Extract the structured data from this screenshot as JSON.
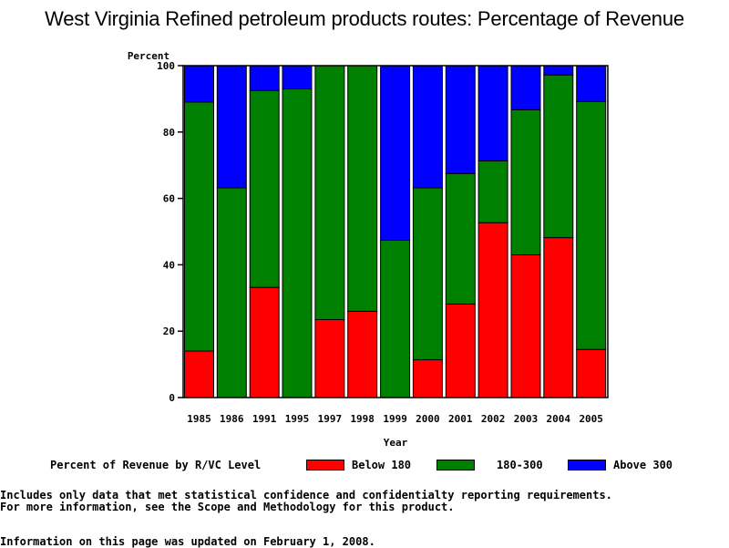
{
  "chart_data": {
    "type": "bar",
    "stacked": true,
    "title": "West Virginia Refined petroleum products routes: Percentage of Revenue",
    "xlabel": "Year",
    "ylabel": "Percent",
    "ylim": [
      0,
      100
    ],
    "yticks": [
      "0",
      "20",
      "40",
      "60",
      "80",
      "100"
    ],
    "categories": [
      "1985",
      "1986",
      "1991",
      "1995",
      "1997",
      "1998",
      "1999",
      "2000",
      "2001",
      "2002",
      "2003",
      "2004",
      "2005"
    ],
    "series": [
      {
        "name": "Below 180",
        "color": "#ff0000",
        "values": [
          14.0,
          0,
          33.2,
          0,
          23.5,
          26.0,
          0,
          11.4,
          28.2,
          52.7,
          43.0,
          48.2,
          14.5
        ]
      },
      {
        "name": "180-300",
        "color": "#008000",
        "values": [
          75.0,
          63.2,
          59.3,
          93.0,
          76.5,
          74.0,
          47.4,
          51.8,
          39.3,
          18.6,
          43.7,
          49.0,
          74.7
        ]
      },
      {
        "name": "Above 300",
        "color": "#0000ff",
        "values": [
          11.0,
          36.8,
          7.5,
          7.0,
          0,
          0,
          52.6,
          36.8,
          32.5,
          28.7,
          13.3,
          2.8,
          10.8
        ]
      }
    ],
    "legend_title": "Percent of Revenue by R/VC Level",
    "legend_position": "bottom"
  },
  "notes": {
    "line1": "Includes only data that met statistical confidence and confidentialty reporting requirements.",
    "line2": "For more information, see the Scope and Methodology for this product.",
    "updated": "Information on this page was updated on February 1, 2008."
  }
}
